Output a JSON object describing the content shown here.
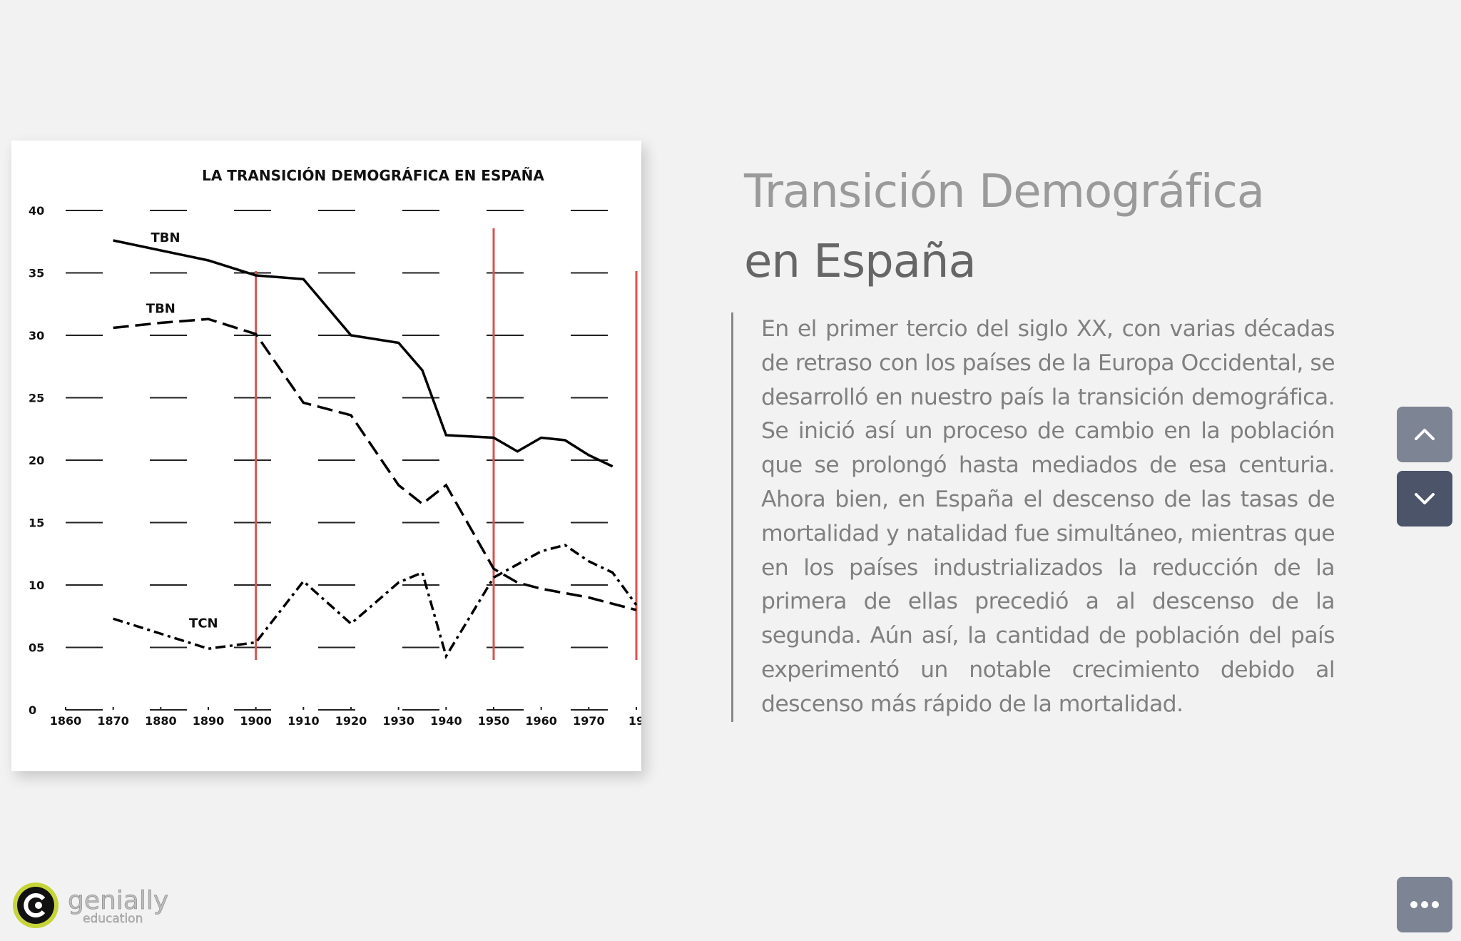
{
  "chart_data": {
    "type": "line",
    "title": "LA TRANSICIÓN DEMOGRÁFICA EN ESPAÑA",
    "xlim": [
      1860,
      1980
    ],
    "xticks": [
      1860,
      1870,
      1880,
      1890,
      1900,
      1910,
      1920,
      1930,
      1940,
      1950,
      1960,
      1970,
      {
        "value": 1980,
        "label": "19"
      }
    ],
    "ylim": [
      0,
      40
    ],
    "yticks": [
      0,
      {
        "value": 5,
        "label": "05"
      },
      10,
      15,
      20,
      25,
      30,
      35,
      40
    ],
    "grid": true,
    "stage_lines": {
      "color": "#d9534f",
      "x": [
        1900,
        1950,
        1980
      ]
    },
    "series": [
      {
        "name": "TBN",
        "color": "#000000",
        "line_style": "solid",
        "x": [
          1870,
          1890,
          1900,
          1910,
          1920,
          1930,
          1935,
          1940,
          1950,
          1955,
          1960,
          1965,
          1970,
          1975
        ],
        "values": [
          37.6,
          36,
          34.8,
          34.5,
          30,
          29.4,
          27.2,
          22,
          21.8,
          20.7,
          21.8,
          21.6,
          20.4,
          19.5
        ]
      },
      {
        "name": "TBN",
        "color": "#000000",
        "line_style": "dashed",
        "x": [
          1870,
          1880,
          1890,
          1900,
          1910,
          1920,
          1930,
          1935,
          1940,
          1950,
          1955,
          1960,
          1970,
          1980
        ],
        "values": [
          30.6,
          31,
          31.3,
          30.1,
          24.6,
          23.6,
          18,
          16.5,
          18,
          11.3,
          10.2,
          9.7,
          9,
          8
        ]
      },
      {
        "name": "TCN",
        "color": "#000000",
        "line_style": "dashdot",
        "x": [
          1870,
          1880,
          1890,
          1900,
          1910,
          1920,
          1930,
          1935,
          1940,
          1950,
          1960,
          1965,
          1970,
          1975,
          1980
        ],
        "values": [
          7.3,
          6.1,
          4.9,
          5.4,
          10.3,
          6.9,
          10.2,
          11,
          4.3,
          10.6,
          12.7,
          13.2,
          11.9,
          11,
          8.4
        ]
      }
    ]
  },
  "heading": [
    "Transición Demográfica",
    "en España"
  ],
  "paragraph": "En el primer tercio del siglo XX, con varias décadas de retraso con los países de la Europa Occidental, se desarrolló en nuestro país la transición demográfica. Se inició así un proceso de cambio en la población que se prolongó hasta mediados de esa centuria. Ahora bien, en España el descenso de las tasas de mortalidad y natalidad fue simultáneo, mientras que en los países industrializados la reducción de la primera de ellas precedió a al descenso de la segunda. Aún así, la cantidad de población del país experimentó un notable crecimiento debido al descenso más rápido de la mortalidad.",
  "logo": {
    "name": "genially",
    "sub": "education"
  }
}
